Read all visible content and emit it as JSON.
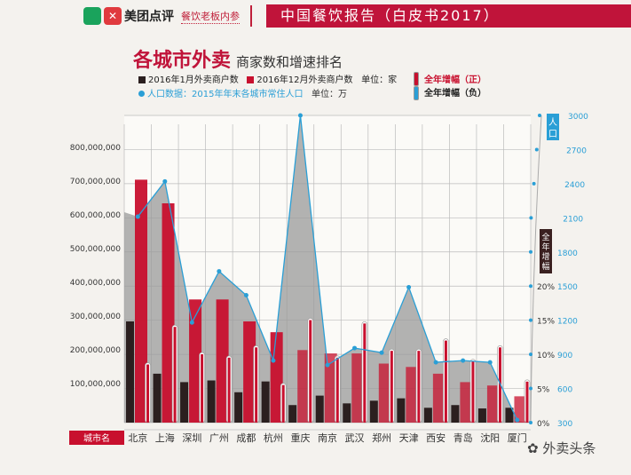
{
  "header": {
    "logo_left": "美团",
    "brand": "美团点评",
    "subbrand": "餐饮老板内参",
    "banner": "中国餐饮报告（白皮书2017）"
  },
  "title": {
    "main": "各城市外卖",
    "sub": "商家数和增速排名"
  },
  "legend": {
    "jan": "2016年1月外卖商户数",
    "dec": "2016年12月外卖商户数",
    "unit": "单位：家",
    "pop": "人口数据：2015年年末各城市常住人口",
    "pop_unit": "单位：万",
    "growth_pos": "全年增幅（正）",
    "growth_neg": "全年增幅（负）"
  },
  "watermark": "外卖头条",
  "colors": {
    "jan": "#2b1f1f",
    "dec": "#c8102e",
    "pop": "#2a9fd6",
    "area": "#9a9a9a",
    "growth": "#c8102e"
  },
  "chart_data": {
    "type": "bar",
    "category_label": "城市名",
    "categories": [
      "北京",
      "上海",
      "深圳",
      "广州",
      "成都",
      "杭州",
      "重庆",
      "南京",
      "武汉",
      "郑州",
      "天津",
      "西安",
      "青岛",
      "沈阳",
      "厦门"
    ],
    "left_axis": {
      "ticks": [
        "100,000,000",
        "200,000,000",
        "300,000,000",
        "400,000,000",
        "500,000,000",
        "600,000,000",
        "700,000,000",
        "800,000,000"
      ],
      "range": [
        0,
        800000000
      ]
    },
    "pop_axis": {
      "label": "人口",
      "ticks": [
        "300",
        "600",
        "900",
        "1200",
        "1500",
        "1800",
        "2100",
        "2400",
        "2700",
        "3000"
      ],
      "range": [
        300,
        3000
      ]
    },
    "growth_axis": {
      "label": "全年增幅",
      "ticks": [
        "0%",
        "5%",
        "10%",
        "15%",
        "20%"
      ],
      "range": [
        0,
        20
      ]
    },
    "series": [
      {
        "name": "2016年1月外卖商户数",
        "type": "bar",
        "values": [
          300000000,
          145000000,
          120000000,
          125000000,
          90000000,
          122000000,
          52000000,
          80000000,
          57000000,
          65000000,
          72000000,
          44000000,
          52000000,
          42000000,
          44000000
        ]
      },
      {
        "name": "2016年12月外卖商户数",
        "type": "bar",
        "values": [
          720000000,
          650000000,
          365000000,
          365000000,
          300000000,
          268000000,
          215000000,
          205000000,
          205000000,
          175000000,
          165000000,
          145000000,
          120000000,
          110000000,
          78000000
        ]
      },
      {
        "name": "全年增幅（正）",
        "type": "thermometer",
        "values": [
          8.5,
          14,
          10,
          9.5,
          11,
          5.5,
          15,
          9.5,
          14.5,
          10.5,
          10.5,
          12,
          9,
          11,
          6
        ]
      },
      {
        "name": "人口数据：2015年年末各城市常住人口",
        "type": "area-line",
        "values": [
          2110,
          2420,
          1180,
          1630,
          1420,
          845,
          3000,
          806,
          955,
          915,
          1490,
          830,
          845,
          830,
          323
        ]
      }
    ]
  }
}
